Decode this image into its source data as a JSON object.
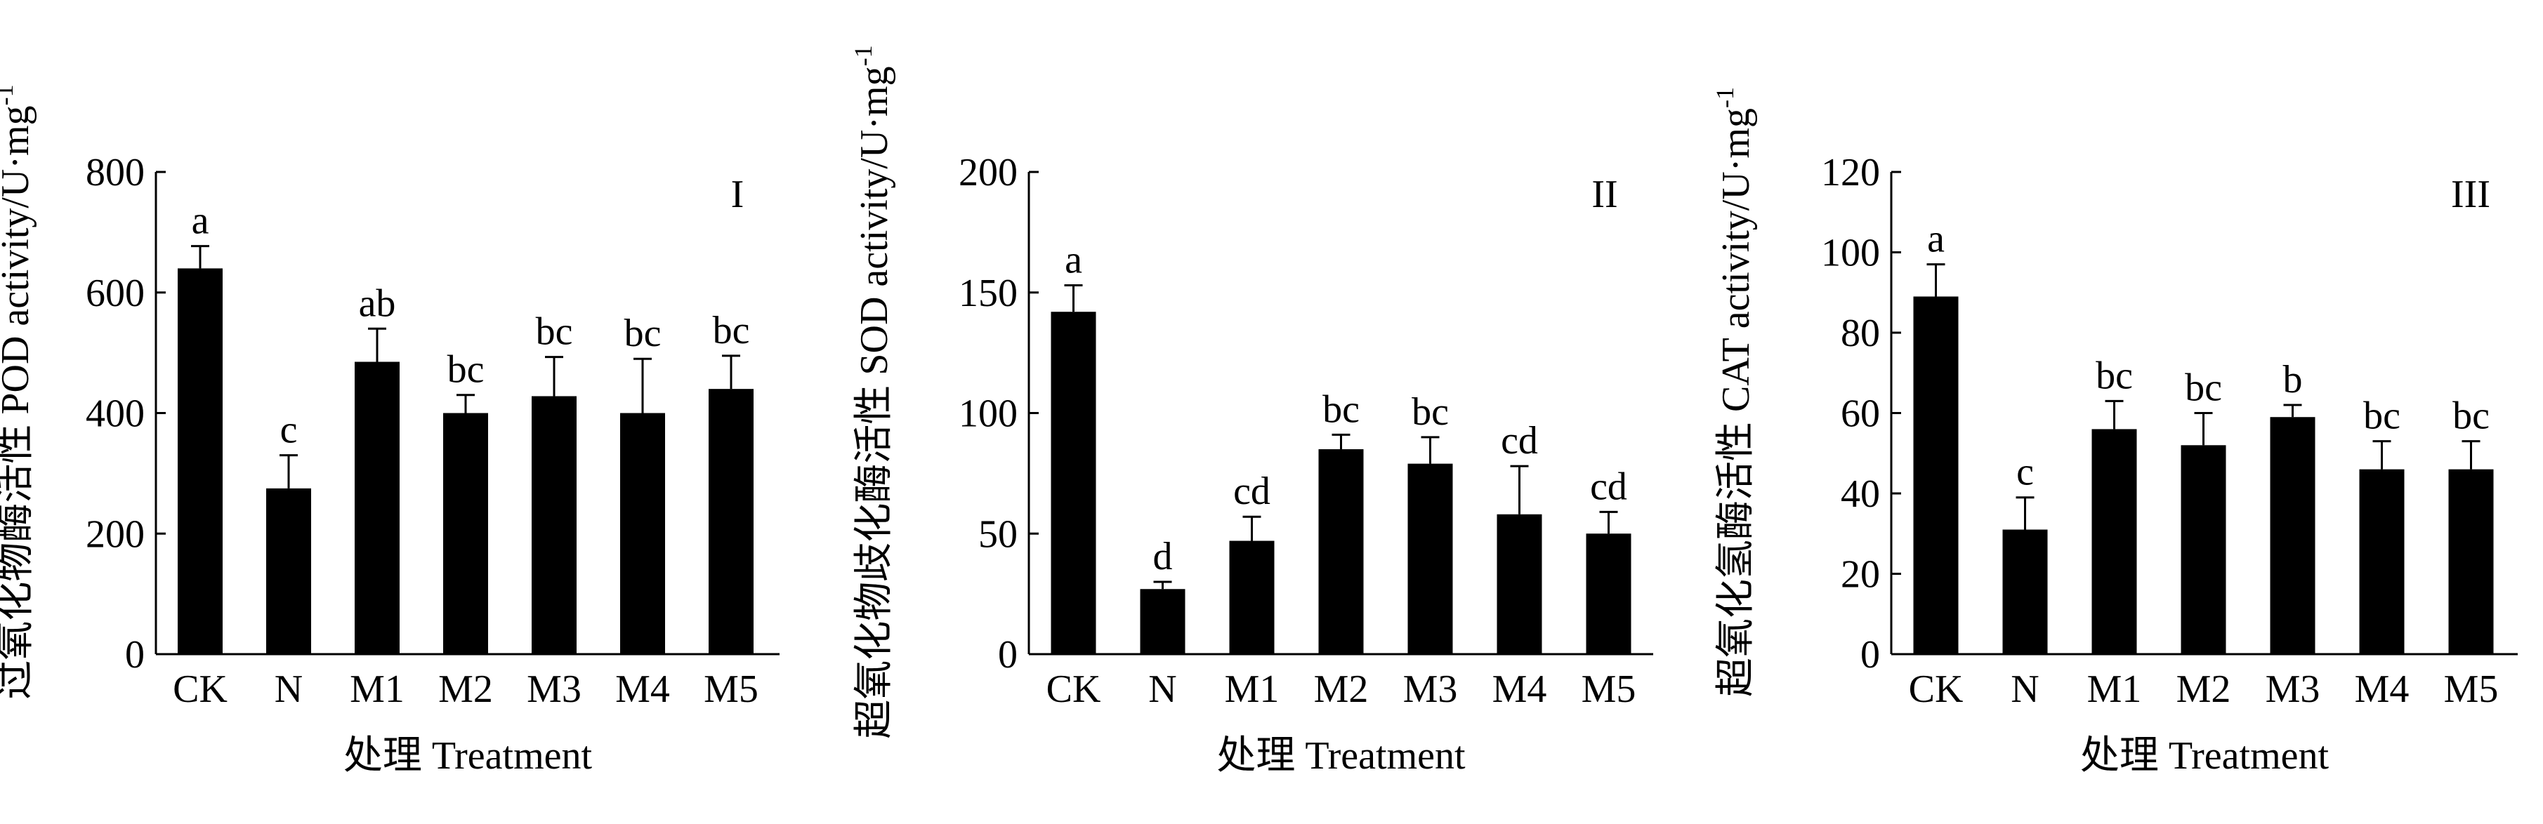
{
  "chart_data": [
    {
      "type": "bar",
      "panel_label": "I",
      "categories": [
        "CK",
        "N",
        "M1",
        "M2",
        "M3",
        "M4",
        "M5"
      ],
      "values": [
        640,
        275,
        485,
        400,
        428,
        400,
        440
      ],
      "errors": [
        37,
        55,
        55,
        30,
        65,
        90,
        55
      ],
      "letters": [
        "a",
        "c",
        "ab",
        "bc",
        "bc",
        "bc",
        "bc"
      ],
      "xlabel": "处理 Treatment",
      "ylabel": "过氧化物酶活性 POD activity/U·mg",
      "ylabel_sup": "-1",
      "ylim": [
        0,
        800
      ],
      "yticks": [
        0,
        200,
        400,
        600,
        800
      ],
      "grid": false,
      "bar_color": "#000000"
    },
    {
      "type": "bar",
      "panel_label": "II",
      "categories": [
        "CK",
        "N",
        "M1",
        "M2",
        "M3",
        "M4",
        "M5"
      ],
      "values": [
        142,
        27,
        47,
        85,
        79,
        58,
        50
      ],
      "errors": [
        11,
        3,
        10,
        6,
        11,
        20,
        9
      ],
      "letters": [
        "a",
        "d",
        "cd",
        "bc",
        "bc",
        "cd",
        "cd"
      ],
      "xlabel": "处理 Treatment",
      "ylabel": "超氧化物歧化酶活性 SOD activity/U·mg",
      "ylabel_sup": "-1",
      "ylim": [
        0,
        200
      ],
      "yticks": [
        0,
        50,
        100,
        150,
        200
      ],
      "grid": false,
      "bar_color": "#000000"
    },
    {
      "type": "bar",
      "panel_label": "III",
      "categories": [
        "CK",
        "N",
        "M1",
        "M2",
        "M3",
        "M4",
        "M5"
      ],
      "values": [
        89,
        31,
        56,
        52,
        59,
        46,
        46
      ],
      "errors": [
        8,
        8,
        7,
        8,
        3,
        7,
        7
      ],
      "letters": [
        "a",
        "c",
        "bc",
        "bc",
        "b",
        "bc",
        "bc"
      ],
      "xlabel": "处理 Treatment",
      "ylabel": "超氧化氢酶活性 CAT activity/U·mg",
      "ylabel_sup": "-1",
      "ylim": [
        0,
        120
      ],
      "yticks": [
        0,
        20,
        40,
        60,
        80,
        100,
        120
      ],
      "grid": false,
      "bar_color": "#000000"
    }
  ]
}
